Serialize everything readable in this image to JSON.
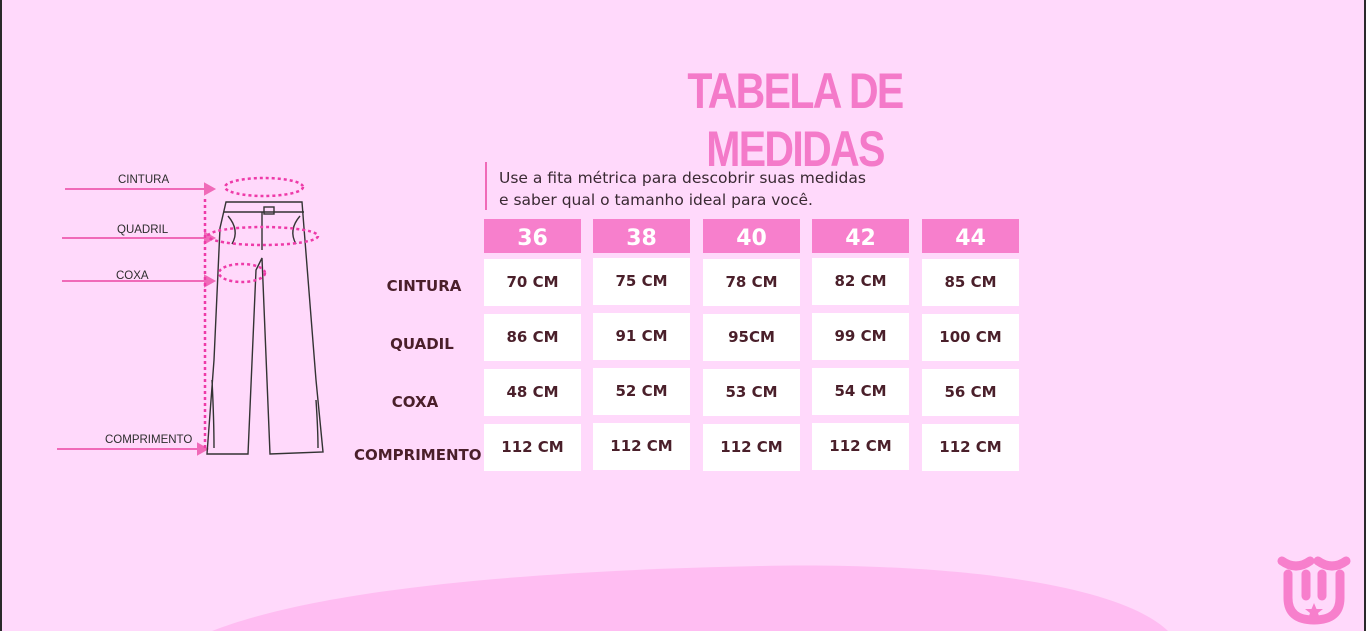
{
  "title": "TABELA DE MEDIDAS",
  "subtitle": {
    "line1": "Use a fita métrica para descobrir suas medidas",
    "line2": "e saber qual o tamanho ideal para você."
  },
  "diagram_labels": {
    "cintura": "CINTURA",
    "quadril": "QUADRIL",
    "coxa": "COXA",
    "comprimento": "COMPRIMENTO"
  },
  "table": {
    "sizes": [
      "36",
      "38",
      "40",
      "42",
      "44"
    ],
    "rows": [
      {
        "label": "CINTURA",
        "values": [
          "70 CM",
          "75 CM",
          "78 CM",
          "82 CM",
          "85 CM"
        ]
      },
      {
        "label": "QUADIL",
        "values": [
          "86 CM",
          "91 CM",
          "95CM",
          "99 CM",
          "100 CM"
        ]
      },
      {
        "label": "COXA",
        "values": [
          "48 CM",
          "52 CM",
          "53 CM",
          "54 CM",
          "56 CM"
        ]
      },
      {
        "label": "COMPRIMENTO",
        "values": [
          "112 CM",
          "112 CM",
          "112 CM",
          "112 CM",
          "112 CM"
        ]
      }
    ]
  },
  "colors": {
    "background": "#ffd9fb",
    "accent": "#f77fcc",
    "title": "#f47ac9",
    "blob": "#ffbdf2",
    "text_dark": "#4a1f2a"
  },
  "icons": {
    "logo": "brand-logo-icon",
    "pants": "flare-pants-icon"
  }
}
